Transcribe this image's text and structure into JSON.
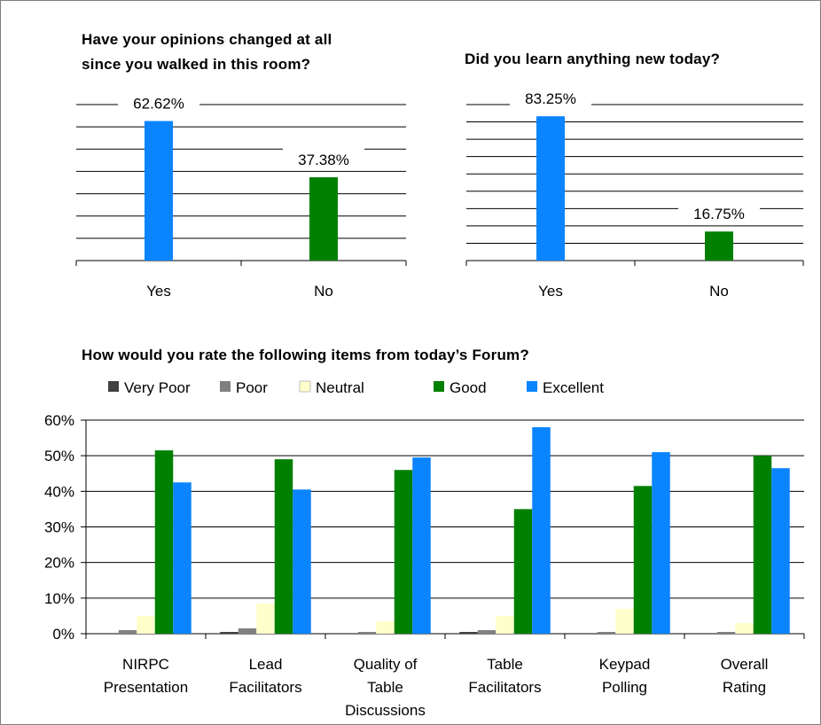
{
  "chart_data": [
    {
      "type": "bar",
      "title": [
        "Have your opinions changed at all",
        "since you walked in this room?"
      ],
      "categories": [
        "Yes",
        "No"
      ],
      "values": [
        62.62,
        37.38
      ],
      "data_labels": [
        "62.62%",
        "37.38%"
      ],
      "ylim": [
        0,
        70
      ],
      "grid": true,
      "colors": [
        "#0a84ff",
        "#008000"
      ]
    },
    {
      "type": "bar",
      "title": [
        "Did you learn anything new today?"
      ],
      "categories": [
        "Yes",
        "No"
      ],
      "values": [
        83.25,
        16.75
      ],
      "data_labels": [
        "83.25%",
        "16.75%"
      ],
      "ylim": [
        0,
        90
      ],
      "grid": true,
      "colors": [
        "#0a84ff",
        "#008000"
      ]
    },
    {
      "type": "bar",
      "title": "How would you rate the following items from today’s Forum?",
      "categories": [
        [
          "NIRPC",
          "Presentation"
        ],
        [
          "Lead",
          "Facilitators"
        ],
        [
          "Quality of",
          "Table",
          "Discussions"
        ],
        [
          "Table",
          "Facilitators"
        ],
        [
          "Keypad",
          "Polling"
        ],
        [
          "Overall",
          "Rating"
        ]
      ],
      "series": [
        {
          "name": "Very Poor",
          "color": "#404040",
          "values": [
            0,
            0.5,
            0,
            0.5,
            0,
            0
          ]
        },
        {
          "name": "Poor",
          "color": "#808080",
          "values": [
            1,
            1.5,
            0.5,
            1,
            0.5,
            0.5
          ]
        },
        {
          "name": "Neutral",
          "color": "#ffffcc",
          "values": [
            5,
            8.5,
            3.5,
            5,
            7,
            3
          ]
        },
        {
          "name": "Good",
          "color": "#008000",
          "values": [
            51.5,
            49,
            46,
            35,
            41.5,
            50
          ]
        },
        {
          "name": "Excellent",
          "color": "#0a84ff",
          "values": [
            42.5,
            40.5,
            49.5,
            58,
            51,
            46.5
          ]
        }
      ],
      "yticks": [
        "0%",
        "10%",
        "20%",
        "30%",
        "40%",
        "50%",
        "60%"
      ],
      "ylim": [
        0,
        60
      ],
      "grid": true,
      "legend": "top"
    }
  ]
}
